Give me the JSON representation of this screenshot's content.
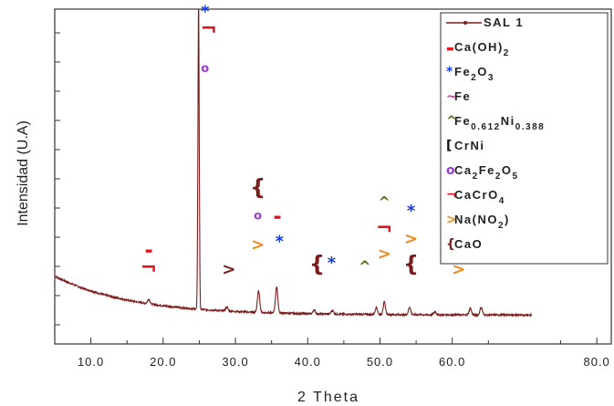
{
  "chart_data": {
    "type": "line",
    "xlabel": "2 Theta",
    "ylabel": "Intensidad (U.A)",
    "xlim": [
      5,
      82
    ],
    "ylim": [
      0,
      100
    ],
    "x_ticks": [
      "10.0",
      "20.0",
      "30.0",
      "40.0",
      "50.0",
      "60.0",
      "80.0"
    ],
    "grid": false,
    "legend_position": "top-right",
    "series": [
      {
        "name": "SAL 1",
        "color": "#7a1c1c",
        "background": {
          "start": 13.5,
          "decay": 10.5,
          "floor": 0.8
        },
        "peaks": [
          {
            "x": 18.0,
            "y": 1.5
          },
          {
            "x": 24.9,
            "y": 100
          },
          {
            "x": 28.8,
            "y": 1.3
          },
          {
            "x": 33.2,
            "y": 7.0
          },
          {
            "x": 35.7,
            "y": 8.5
          },
          {
            "x": 40.9,
            "y": 1.3
          },
          {
            "x": 43.4,
            "y": 1.2
          },
          {
            "x": 49.5,
            "y": 2.4
          },
          {
            "x": 50.6,
            "y": 4.0
          },
          {
            "x": 54.1,
            "y": 2.5
          },
          {
            "x": 57.6,
            "y": 1.0
          },
          {
            "x": 62.5,
            "y": 2.2
          },
          {
            "x": 64.0,
            "y": 2.5
          }
        ]
      }
    ],
    "legend": [
      {
        "symbol": "—•—",
        "label": "SAL 1",
        "color": "#7a1c1c"
      },
      {
        "symbol": "-",
        "label": "Ca(OH)",
        "sub": "2",
        "color": "#e0141e"
      },
      {
        "symbol": "*",
        "label": "Fe",
        "sub": "2",
        "label2": "O",
        "sub2": "3",
        "color": "#1a3ad6"
      },
      {
        "symbol": "~",
        "label": "Fe",
        "color": "#e030b0",
        "text_color": "#8a2a9a"
      },
      {
        "symbol": "^",
        "label": "Fe",
        "sub": "0.612",
        "label2": "Ni",
        "sub2": "0.388",
        "color": "#6b6b10",
        "text_color": "#8a2a9a"
      },
      {
        "symbol": "[",
        "label": "CrNi",
        "color": "#111111"
      },
      {
        "symbol": "o",
        "label": "Ca",
        "sub": "2",
        "label2": "Fe",
        "sub2": "2",
        "label3": "O",
        "sub3": "5",
        "color": "#9a3ad0"
      },
      {
        "symbol": "¬",
        "label": "CaCrO",
        "sub": "4",
        "color": "#e0141e"
      },
      {
        "symbol": ">",
        "label": "Na(NO",
        "sub": "2",
        "label2": ")",
        "color": "#f08a1e"
      },
      {
        "symbol": "{",
        "label": "CaO",
        "color": "#7a1c1c"
      }
    ],
    "annotations": [
      {
        "symbol": "*",
        "x": 25.8,
        "y": 98,
        "color": "#1a3ad6"
      },
      {
        "symbol": "¬",
        "x": 26.3,
        "y": 92,
        "color": "#e0141e"
      },
      {
        "symbol": "o",
        "x": 25.8,
        "y": 80,
        "color": "#9a3ad0"
      },
      {
        "symbol": "-",
        "x": 18.0,
        "y": 21,
        "color": "#e0141e"
      },
      {
        "symbol": "¬",
        "x": 18.0,
        "y": 14,
        "color": "#e0141e"
      },
      {
        "symbol": ">",
        "x": 29.1,
        "y": 14,
        "color": "#7a1c1c"
      },
      {
        "symbol": "{",
        "x": 33.1,
        "y": 40,
        "color": "#7a1c1c"
      },
      {
        "symbol": "o",
        "x": 33.1,
        "y": 32,
        "color": "#9a3ad0"
      },
      {
        "symbol": ">",
        "x": 33.1,
        "y": 22,
        "color": "#f08a1e"
      },
      {
        "symbol": "-",
        "x": 35.8,
        "y": 32,
        "color": "#e0141e"
      },
      {
        "symbol": "*",
        "x": 36.1,
        "y": 23,
        "color": "#1a3ad6"
      },
      {
        "symbol": "{",
        "x": 41.3,
        "y": 15,
        "color": "#7a1c1c"
      },
      {
        "symbol": "*",
        "x": 43.3,
        "y": 16,
        "color": "#1a3ad6"
      },
      {
        "symbol": "^",
        "x": 47.9,
        "y": 15,
        "color": "#6b6b10"
      },
      {
        "symbol": "^",
        "x": 50.6,
        "y": 36,
        "color": "#6b6b10"
      },
      {
        "symbol": "¬",
        "x": 50.6,
        "y": 27,
        "color": "#e0141e"
      },
      {
        "symbol": ">",
        "x": 50.6,
        "y": 19,
        "color": "#f08a1e"
      },
      {
        "symbol": "*",
        "x": 54.3,
        "y": 33,
        "color": "#1a3ad6"
      },
      {
        "symbol": ">",
        "x": 54.3,
        "y": 24,
        "color": "#f08a1e"
      },
      {
        "symbol": "{",
        "x": 54.3,
        "y": 15,
        "color": "#7a1c1c"
      },
      {
        "symbol": "*",
        "x": 60.9,
        "y": 33,
        "color": "#1a3ad6"
      },
      {
        "symbol": "~",
        "x": 60.9,
        "y": 24,
        "color": "#e030b0"
      },
      {
        "symbol": ">",
        "x": 60.9,
        "y": 14,
        "color": "#f08a1e"
      }
    ]
  }
}
